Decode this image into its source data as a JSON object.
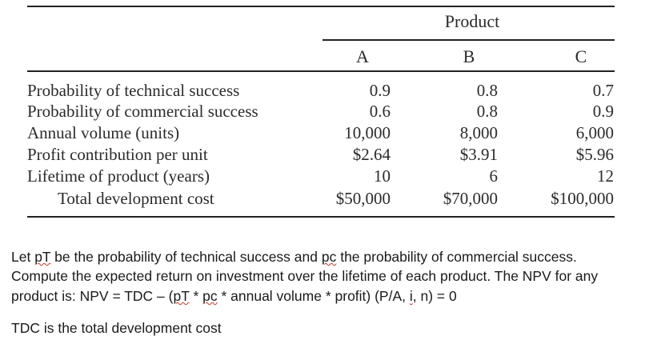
{
  "table": {
    "group_header": "Product",
    "columns": [
      "A",
      "B",
      "C"
    ],
    "rows": [
      {
        "label": "Probability of technical success",
        "values": [
          "0.9",
          "0.8",
          "0.7"
        ]
      },
      {
        "label": "Probability of commercial success",
        "values": [
          "0.6",
          "0.8",
          "0.9"
        ]
      },
      {
        "label": "Annual volume (units)",
        "values": [
          "10,000",
          "8,000",
          "6,000"
        ]
      },
      {
        "label": "Profit contribution per unit",
        "values": [
          "$2.64",
          "$3.91",
          "$5.96"
        ]
      },
      {
        "label": "Lifetime of product (years)",
        "values": [
          "10",
          "6",
          "12"
        ]
      },
      {
        "label": "Total development cost",
        "values": [
          "$50,000",
          "$70,000",
          "$100,000"
        ]
      }
    ]
  },
  "text": {
    "line1_a": "Let ",
    "line1_var_t": "pT",
    "line1_b": " be the probability of technical success and ",
    "line1_var_c": "pc",
    "line1_c": " the probability of commercial success.",
    "line2": "Compute the expected return on investment over the lifetime of each product. The NPV for any",
    "line3_a": "product is: NPV = TDC – (",
    "line3_var_t": "pT",
    "line3_b": " * ",
    "line3_var_c": "pc",
    "line3_c": " * annual volume * profit) (P/A, ",
    "line3_var_i": "i",
    "line3_d": ", n) = 0",
    "line4": "TDC is the total development cost"
  }
}
